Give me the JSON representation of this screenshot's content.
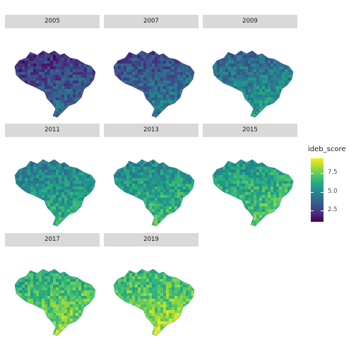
{
  "panels": [
    {
      "label": "2005",
      "level": 0.18
    },
    {
      "label": "2007",
      "level": 0.26
    },
    {
      "label": "2009",
      "level": 0.38
    },
    {
      "label": "2011",
      "level": 0.46
    },
    {
      "label": "2013",
      "level": 0.52
    },
    {
      "label": "2015",
      "level": 0.58
    },
    {
      "label": "2017",
      "level": 0.66
    },
    {
      "label": "2019",
      "level": 0.7
    }
  ],
  "legend": {
    "title": "ideb_score",
    "ticks": [
      "7.5",
      "5.0",
      "2.5"
    ],
    "tick_values": [
      7.5,
      5.0,
      2.5
    ],
    "min": 1.0,
    "max": 9.5
  },
  "colors": {
    "scale": [
      "#440154",
      "#482878",
      "#3e4989",
      "#31688e",
      "#26828e",
      "#1f9e89",
      "#35b779",
      "#6ece58",
      "#b5de2b",
      "#fde725"
    ],
    "strip": "#d9d9d9",
    "background": "#ffffff"
  }
}
